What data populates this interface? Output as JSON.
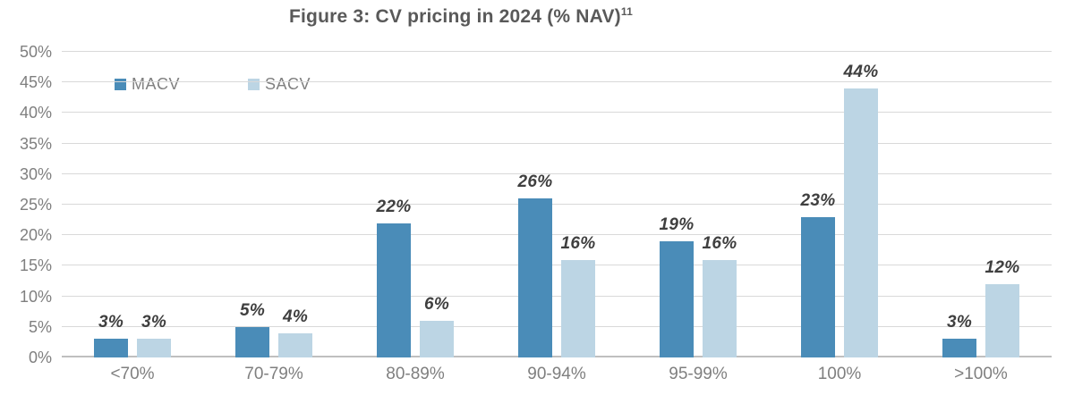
{
  "title": "Figure 3: CV pricing in 2024 (% NAV)",
  "title_superscript": "11",
  "colors": {
    "macv": "#4A8CB8",
    "sacv": "#BCD5E4",
    "gridline": "#d9d9d9",
    "baseline": "#bfbfbf",
    "title_text": "#595959",
    "axis_text": "#7f7f7f",
    "data_label_text": "#3f3f3f"
  },
  "chart_data": {
    "type": "bar",
    "title": "Figure 3: CV pricing in 2024 (% NAV)¹¹",
    "categories": [
      "<70%",
      "70-79%",
      "80-89%",
      "90-94%",
      "95-99%",
      "100%",
      ">100%"
    ],
    "series": [
      {
        "name": "MACV",
        "color": "#4A8CB8",
        "values": [
          3,
          5,
          22,
          26,
          19,
          23,
          3
        ]
      },
      {
        "name": "SACV",
        "color": "#BCD5E4",
        "values": [
          3,
          4,
          6,
          16,
          16,
          44,
          12
        ]
      }
    ],
    "data_labels": {
      "MACV": [
        "3%",
        "5%",
        "22%",
        "26%",
        "19%",
        "23%",
        "3%"
      ],
      "SACV": [
        "3%",
        "4%",
        "6%",
        "16%",
        "16%",
        "44%",
        "12%"
      ]
    },
    "xlabel": "",
    "ylabel": "",
    "ylim": [
      0,
      50
    ],
    "ytick_step": 5,
    "ytick_labels": [
      "0%",
      "5%",
      "10%",
      "15%",
      "20%",
      "25%",
      "30%",
      "35%",
      "40%",
      "45%",
      "50%"
    ],
    "grid": "horizontal",
    "legend_position": "top-left-inside"
  }
}
